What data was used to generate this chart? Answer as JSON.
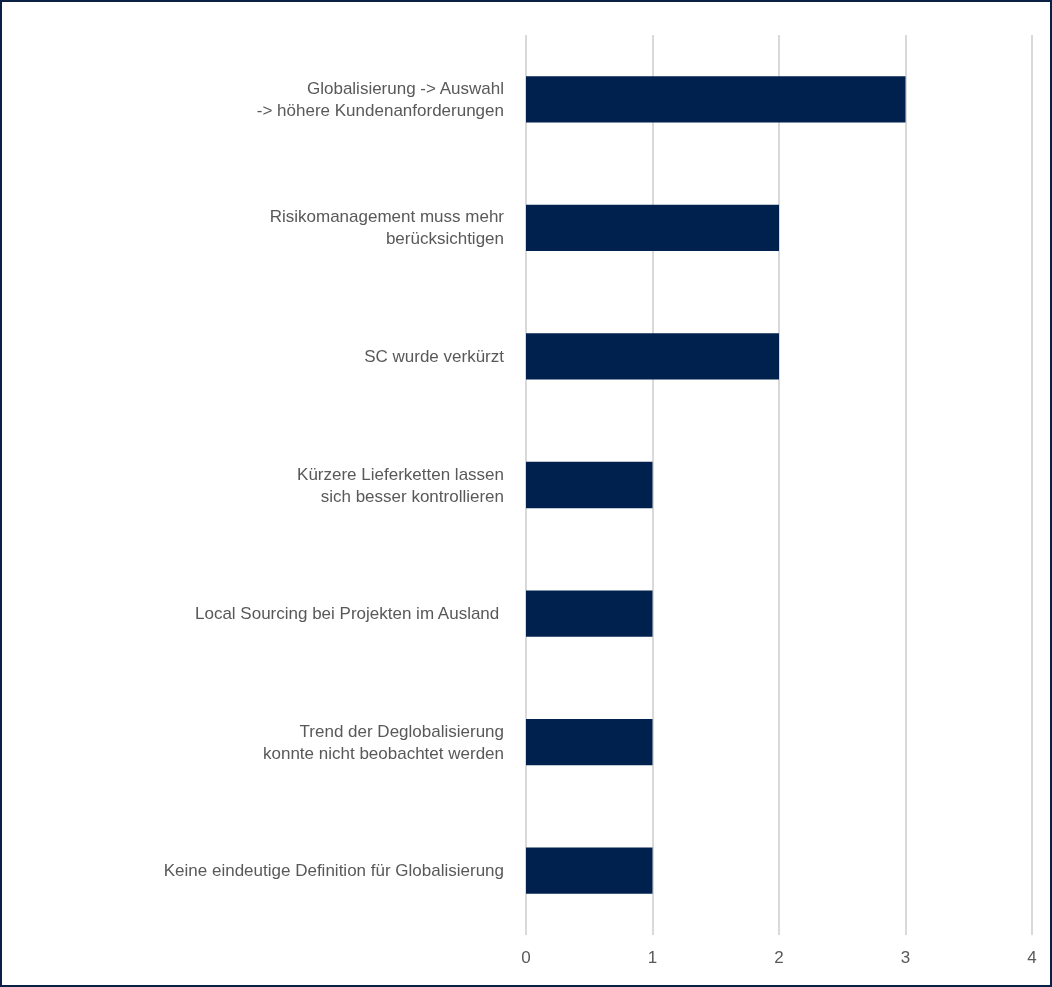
{
  "chart_data": {
    "type": "bar",
    "orientation": "horizontal",
    "categories": [
      "Globalisierung -> Auswahl\n-> höhere Kundenanforderungen",
      "Risikomanagement muss mehr\nberücksichtigen",
      "SC wurde verkürzt",
      "Kürzere Lieferketten lassen\nsich besser kontrollieren",
      "Local Sourcing bei Projekten im Ausland ",
      "Trend der Deglobalisierung\nkonnte nicht beobachtet werden",
      "Keine eindeutige Definition für Globalisierung"
    ],
    "values": [
      3,
      2,
      2,
      1,
      1,
      1,
      1
    ],
    "color": "#00214d",
    "xlim": [
      0,
      4
    ],
    "xticks": [
      0,
      1,
      2,
      3,
      4
    ],
    "grid": "x"
  }
}
